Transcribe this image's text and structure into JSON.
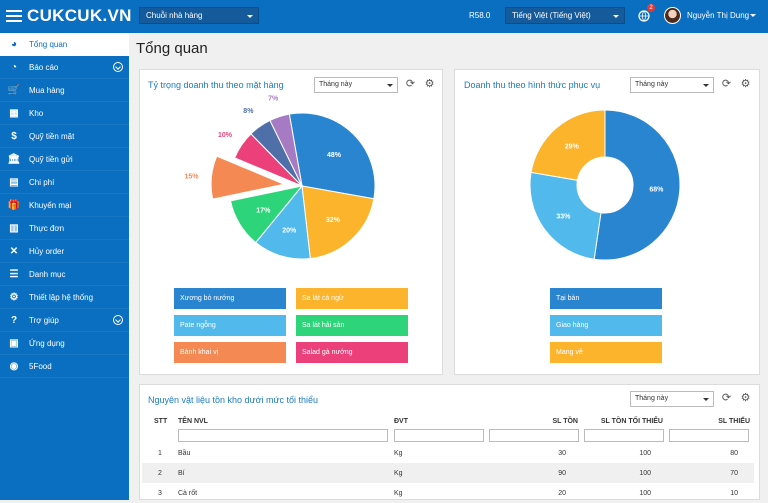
{
  "topbar": {
    "brand": "CUKCUK.VN",
    "chain": "Chuỗi nhà hàng",
    "r58": "R58.0",
    "language": "Tiếng Việt (Tiếng Việt)",
    "notif_count": "2",
    "user": "Nguyễn Thị Dung"
  },
  "sidebar": {
    "items": [
      {
        "label": "Tổng quan",
        "icon": "dashboard-icon"
      },
      {
        "label": "Báo cáo",
        "icon": "pie-chart-icon"
      },
      {
        "label": "Mua hàng",
        "icon": "cart-icon"
      },
      {
        "label": "Kho",
        "icon": "warehouse-icon"
      },
      {
        "label": "Quỹ tiền mặt",
        "icon": "dollar-icon"
      },
      {
        "label": "Quỹ tiền gửi",
        "icon": "bank-icon"
      },
      {
        "label": "Chi phí",
        "icon": "cost-icon"
      },
      {
        "label": "Khuyến mại",
        "icon": "gift-icon"
      },
      {
        "label": "Thực đơn",
        "icon": "menu-book-icon"
      },
      {
        "label": "Hủy order",
        "icon": "cancel-order-icon"
      },
      {
        "label": "Danh mục",
        "icon": "list-icon"
      },
      {
        "label": "Thiết lập hệ thống",
        "icon": "settings-icon"
      },
      {
        "label": "Trợ giúp",
        "icon": "help-icon"
      },
      {
        "label": "Ứng dụng",
        "icon": "apps-icon"
      },
      {
        "label": "5Food",
        "icon": "5food-icon"
      }
    ]
  },
  "page": {
    "title": "Tổng quan"
  },
  "card1": {
    "title": "Tỷ trọng doanh thu theo mặt hàng",
    "period": "Tháng này"
  },
  "card2": {
    "title": "Doanh thu theo hình thức phục vụ",
    "period": "Tháng này"
  },
  "card3": {
    "title": "Nguyên vật liệu tồn kho dưới mức tối thiểu",
    "period": "Tháng này",
    "columns": [
      "STT",
      "TÊN NVL",
      "ĐVT",
      "SL TỒN",
      "SL TỒN TỐI THIỂU",
      "SL THIẾU"
    ],
    "rows": [
      [
        "1",
        "Bầu",
        "Kg",
        "30",
        "100",
        "80"
      ],
      [
        "2",
        "Bí",
        "Kg",
        "90",
        "100",
        "70"
      ],
      [
        "3",
        "Cà rốt",
        "Kg",
        "20",
        "100",
        "10"
      ]
    ]
  },
  "chart_data": [
    {
      "type": "pie",
      "title": "Tỷ trọng doanh thu theo mặt hàng",
      "labels": [
        "Xương bò nướng",
        "Sa lát cá ngừ",
        "Pate ngỗng",
        "Sa lát hải sản",
        "Bánh khai vị",
        "Salad gà nướng",
        "",
        ""
      ],
      "values": [
        48,
        32,
        20,
        17,
        15,
        10,
        8,
        7
      ],
      "display": [
        "48%",
        "32%",
        "20%",
        "17%",
        "15%",
        "10%",
        "8%",
        "7%"
      ],
      "colors": [
        "#2a85d0",
        "#fbb42c",
        "#52b9ec",
        "#2ed47a",
        "#f58953",
        "#ec407a",
        "#4e6fa8",
        "#a77bc4"
      ]
    },
    {
      "type": "pie",
      "title": "Doanh thu theo hình thức phục vụ",
      "labels": [
        "Tại bàn",
        "Giao hàng",
        "Mang về"
      ],
      "values": [
        68,
        33,
        29
      ],
      "display": [
        "68%",
        "33%",
        "29%"
      ],
      "colors": [
        "#2a85d0",
        "#52b9ec",
        "#fbb42c"
      ]
    }
  ]
}
